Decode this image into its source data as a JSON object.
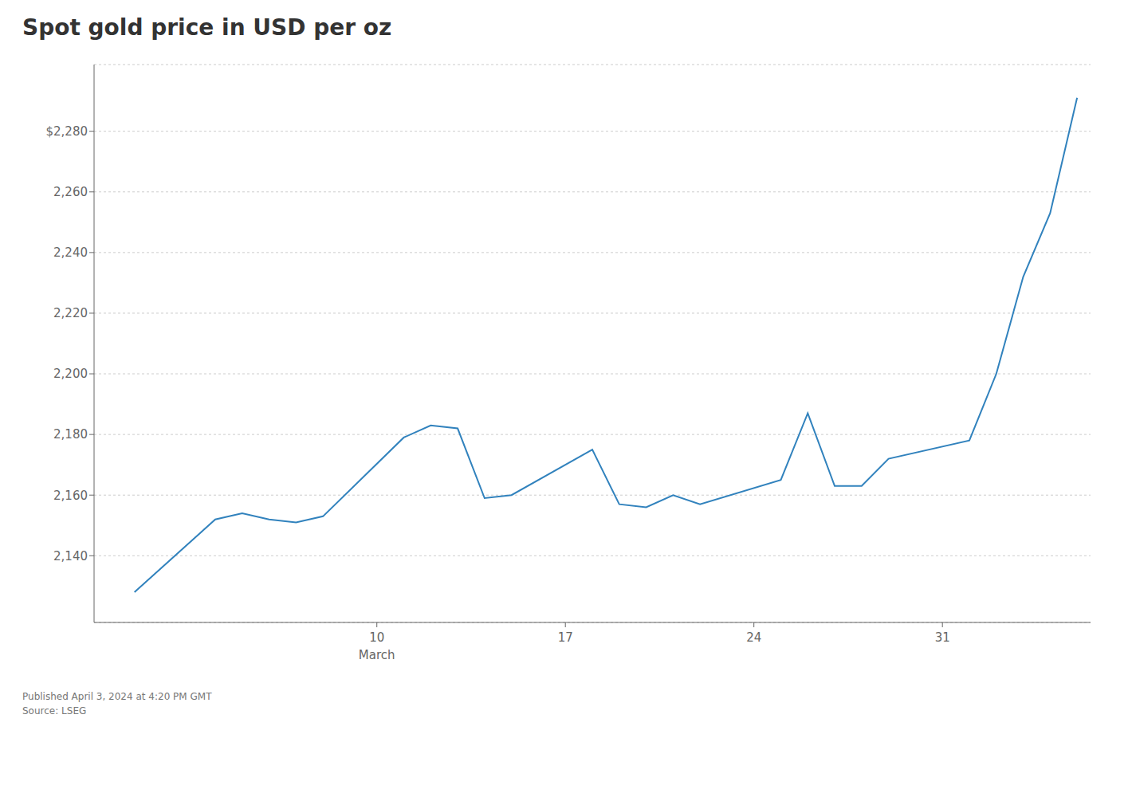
{
  "chart_data": {
    "type": "line",
    "title": "Spot gold price in USD per oz",
    "x": [
      1,
      4,
      5,
      6,
      7,
      8,
      11,
      12,
      13,
      14,
      15,
      18,
      19,
      20,
      21,
      22,
      25,
      26,
      27,
      28,
      29,
      32,
      33,
      34,
      35,
      36
    ],
    "values": [
      2128,
      2152,
      2154,
      2152,
      2151,
      2153,
      2179,
      2183,
      2182,
      2159,
      2160,
      2175,
      2157,
      2156,
      2160,
      2157,
      2165,
      2187,
      2163,
      2163,
      2172,
      2178,
      2200,
      2232,
      2253,
      2291
    ],
    "xlim": [
      -0.5,
      36.5
    ],
    "xticks": [
      10,
      17,
      24,
      31
    ],
    "ylim": [
      2118,
      2302
    ],
    "yticks": [
      {
        "value": 2140,
        "label": "2,140"
      },
      {
        "value": 2160,
        "label": "2,160"
      },
      {
        "value": 2180,
        "label": "2,180"
      },
      {
        "value": 2200,
        "label": "2,200"
      },
      {
        "value": 2220,
        "label": "2,220"
      },
      {
        "value": 2240,
        "label": "2,240"
      },
      {
        "value": 2260,
        "label": "2,260"
      },
      {
        "value": 2280,
        "label": "$2,280"
      }
    ],
    "grid": "y",
    "annotations": [
      {
        "text": "March",
        "x": 10
      }
    ],
    "footnotes": [
      "Published April 3, 2024 at 4:20 PM GMT",
      "Source: LSEG"
    ]
  }
}
